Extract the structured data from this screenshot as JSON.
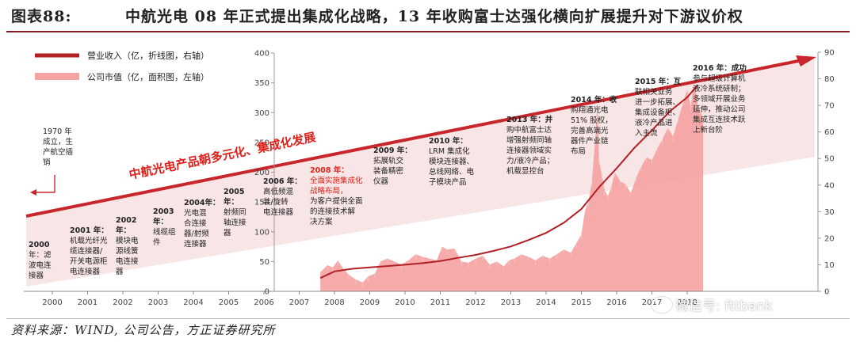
{
  "figure_label": "图表88:",
  "title": "中航光电 08 年正式提出集成化战略，13 年收购富士达强化横向扩展提升对下游议价权",
  "source": "资料来源：WIND, 公司公告，方正证券研究所",
  "watermark": "微信号: fttbank",
  "colors": {
    "revenue": "#b21f24",
    "market_cap": "#f5a3a3",
    "trend": "#c8262b",
    "strategy_red": "#e0201a",
    "rule": "#8b1a1a"
  },
  "annotations": {
    "a1970": [
      "1970 年",
      "成立，生",
      "产航空插",
      "销"
    ],
    "a2000_head": "2000",
    "a2000_body": [
      "年：滤",
      "波电连",
      "接器"
    ],
    "a2001_head": "2001 年：",
    "a2001_body": [
      "机载光纤光",
      "缆连接器/",
      "开关电源柜",
      "电连接器"
    ],
    "a2002_head": "2002年：",
    "a2002_body": [
      "模块电",
      "源线簧",
      "电连接",
      "器"
    ],
    "a2003_head": "2003年：",
    "a2003_body": [
      "线缆组",
      "件"
    ],
    "a2004_head": "2004年：",
    "a2004_body": [
      "光电混",
      "合连接",
      "器/射频",
      "连接器"
    ],
    "a2005_head": "2005年：",
    "a2005_body": [
      "射频同",
      "轴连接",
      "器"
    ],
    "a2006_head": "2006 年：",
    "a2006_body": [
      "高低频混",
      "装/旋转",
      "电连接器"
    ],
    "a2008_head": "2008 年：",
    "a2008_red": [
      "全面实施集成化",
      "战略布局，"
    ],
    "a2008_body": [
      "为客户提供全面",
      "的连接技术解",
      "决方案"
    ],
    "a2009_head": "2009 年：",
    "a2009_body": [
      "拓展轨交",
      "装备精密",
      "仪器"
    ],
    "a2010_head": "2010 年：",
    "a2010_body": [
      "LRM 集成化",
      "模块连接器、",
      "总线网络、电",
      "子模块产品"
    ],
    "a2013_head": "2013 年：并",
    "a2013_body": [
      "购中航富士达",
      "增强射频同轴",
      "连接器领域实",
      "力/液冷产品；",
      "机载显控台"
    ],
    "a2014_head": "2014 年：收",
    "a2014_body": [
      "购翔通光电",
      "51% 股权，",
      "完善高端光",
      "器件产业链",
      "布局"
    ],
    "a2015_head": "2015 年：互",
    "a2015_body": [
      "联相关业务",
      "进一步拓展、",
      "集成设备柜、",
      "液冷产品进",
      "入主流"
    ],
    "a2016_head": "2016 年：成功",
    "a2016_body": [
      "参与超级计算机",
      "液冷系统研制；",
      "多领域开展业务",
      "延伸，推动公司",
      "集成互连技术跃",
      "上新台阶"
    ]
  },
  "chart_data": {
    "type": "area",
    "title": "",
    "legend": [
      "营业收入（亿，折线图，右轴）",
      "公司市值（亿，面积图，左轴）"
    ],
    "legend_position": "top-left",
    "trend_label": "中航光电产品朝多元化、集成化发展",
    "x_ticks": [
      "2000",
      "2001",
      "2002",
      "2003",
      "2004",
      "2005",
      "2006",
      "2007",
      "2008",
      "2009",
      "2010",
      "2011",
      "2012",
      "2013",
      "2014",
      "2015",
      "2016",
      "2017",
      "2018"
    ],
    "y_left": {
      "ticks": [
        0,
        50,
        100,
        150,
        200,
        250,
        300,
        350,
        400
      ],
      "ylim": [
        0,
        400
      ]
    },
    "y_right": {
      "ticks": [
        0,
        10,
        20,
        30,
        40,
        50,
        60,
        70,
        80,
        90
      ],
      "ylim": [
        0,
        90
      ]
    },
    "series": [
      {
        "name": "公司市值（亿，面积图，左轴）",
        "axis": "left",
        "x": [
          2007.6,
          2007.8,
          2007.95,
          2008.1,
          2008.25,
          2008.4,
          2008.6,
          2008.8,
          2008.95,
          2009.15,
          2009.3,
          2009.5,
          2009.7,
          2009.9,
          2010.1,
          2010.3,
          2010.5,
          2010.7,
          2010.9,
          2011.05,
          2011.2,
          2011.4,
          2011.6,
          2011.8,
          2012.0,
          2012.2,
          2012.4,
          2012.6,
          2012.8,
          2012.95,
          2013.1,
          2013.3,
          2013.5,
          2013.7,
          2013.9,
          2014.1,
          2014.3,
          2014.5,
          2014.7,
          2014.85,
          2015.0,
          2015.1,
          2015.2,
          2015.3,
          2015.4,
          2015.45,
          2015.5,
          2015.58,
          2015.66,
          2015.75,
          2015.85,
          2015.95,
          2016.1,
          2016.25,
          2016.4,
          2016.55,
          2016.7,
          2016.85,
          2017.0,
          2017.15,
          2017.3,
          2017.45,
          2017.6,
          2017.75,
          2017.9,
          2018.0,
          2018.1,
          2018.2,
          2018.3,
          2018.45
        ],
        "values": [
          32,
          44,
          40,
          52,
          38,
          28,
          20,
          15,
          25,
          30,
          50,
          55,
          50,
          45,
          52,
          62,
          58,
          55,
          52,
          75,
          70,
          72,
          50,
          48,
          55,
          60,
          45,
          50,
          42,
          52,
          55,
          62,
          58,
          52,
          60,
          55,
          62,
          70,
          65,
          80,
          95,
          135,
          150,
          185,
          260,
          320,
          220,
          195,
          170,
          160,
          175,
          200,
          185,
          180,
          165,
          190,
          210,
          225,
          220,
          240,
          255,
          275,
          260,
          290,
          320,
          340,
          310,
          350,
          315,
          290
        ]
      },
      {
        "name": "营业收入（亿，折线图，右轴）",
        "axis": "right",
        "x": [
          2007.6,
          2008.0,
          2008.5,
          2009.0,
          2009.5,
          2010.0,
          2010.5,
          2011.0,
          2011.5,
          2012.0,
          2012.5,
          2013.0,
          2013.5,
          2014.0,
          2014.5,
          2015.0,
          2015.5,
          2016.0,
          2016.5,
          2017.0,
          2017.5,
          2018.0,
          2018.3
        ],
        "values": [
          5.0,
          7.5,
          8.5,
          9.0,
          9.5,
          10.0,
          10.6,
          11.4,
          12.6,
          13.7,
          15.2,
          16.9,
          19.3,
          22.0,
          25.8,
          31.0,
          39.2,
          46.3,
          54.0,
          60.6,
          67.7,
          73.0,
          77.7
        ]
      }
    ]
  }
}
